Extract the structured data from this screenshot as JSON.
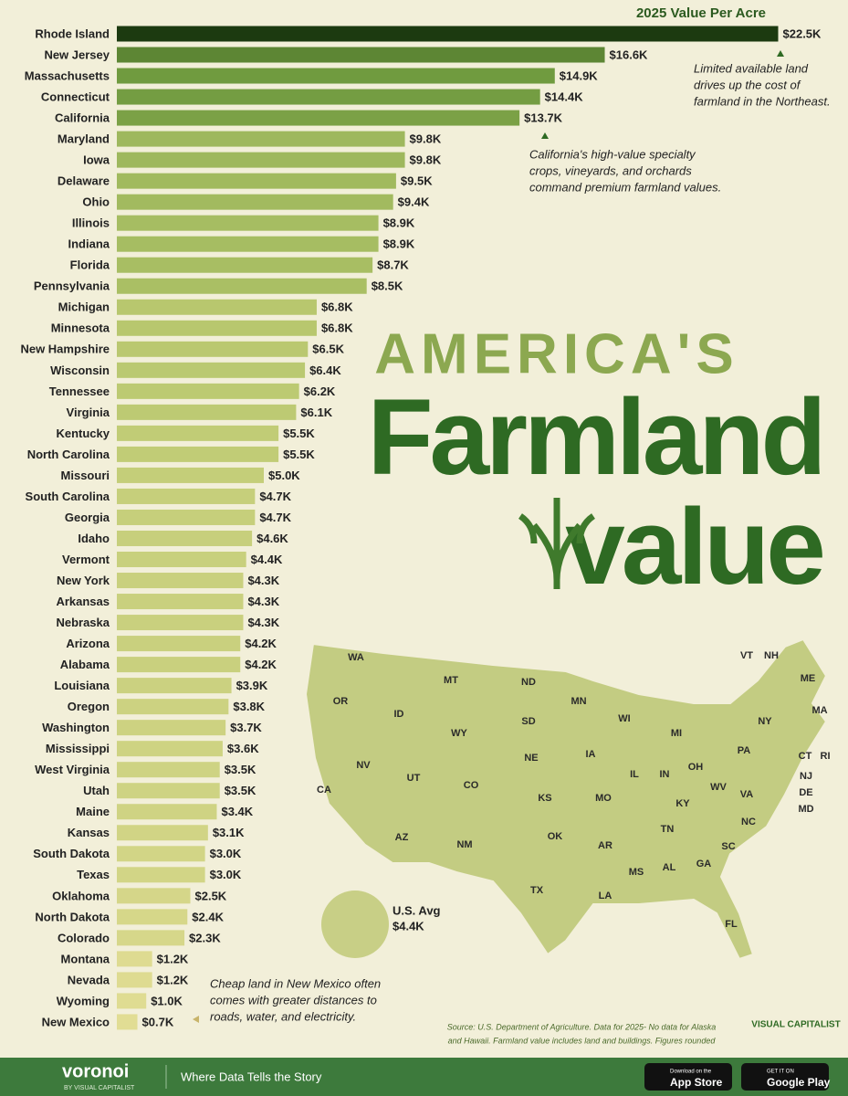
{
  "chart_data": {
    "type": "bar",
    "title": "2025 Value Per Acre",
    "categories": [
      "Rhode Island",
      "New Jersey",
      "Massachusetts",
      "Connecticut",
      "California",
      "Maryland",
      "Iowa",
      "Delaware",
      "Ohio",
      "Illinois",
      "Indiana",
      "Florida",
      "Pennsylvania",
      "Michigan",
      "Minnesota",
      "New Hampshire",
      "Wisconsin",
      "Tennessee",
      "Virginia",
      "Kentucky",
      "North Carolina",
      "Missouri",
      "South Carolina",
      "Georgia",
      "Idaho",
      "Vermont",
      "New York",
      "Arkansas",
      "Nebraska",
      "Arizona",
      "Alabama",
      "Louisiana",
      "Oregon",
      "Washington",
      "Mississippi",
      "West Virginia",
      "Utah",
      "Maine",
      "Kansas",
      "South Dakota",
      "Texas",
      "Oklahoma",
      "North Dakota",
      "Colorado",
      "Montana",
      "Nevada",
      "Wyoming",
      "New Mexico"
    ],
    "values": [
      22.5,
      16.6,
      14.9,
      14.4,
      13.7,
      9.8,
      9.8,
      9.5,
      9.4,
      8.9,
      8.9,
      8.7,
      8.5,
      6.8,
      6.8,
      6.5,
      6.4,
      6.2,
      6.1,
      5.5,
      5.5,
      5.0,
      4.7,
      4.7,
      4.6,
      4.4,
      4.3,
      4.3,
      4.3,
      4.2,
      4.2,
      3.9,
      3.8,
      3.7,
      3.6,
      3.5,
      3.5,
      3.4,
      3.1,
      3.0,
      3.0,
      2.5,
      2.4,
      2.3,
      1.2,
      1.2,
      1.0,
      0.7
    ],
    "value_labels": [
      "$22.5K",
      "$16.6K",
      "$14.9K",
      "$14.4K",
      "$13.7K",
      "$9.8K",
      "$9.8K",
      "$9.5K",
      "$9.4K",
      "$8.9K",
      "$8.9K",
      "$8.7K",
      "$8.5K",
      "$6.8K",
      "$6.8K",
      "$6.5K",
      "$6.4K",
      "$6.2K",
      "$6.1K",
      "$5.5K",
      "$5.5K",
      "$5.0K",
      "$4.7K",
      "$4.7K",
      "$4.6K",
      "$4.4K",
      "$4.3K",
      "$4.3K",
      "$4.3K",
      "$4.2K",
      "$4.2K",
      "$3.9K",
      "$3.8K",
      "$3.7K",
      "$3.6K",
      "$3.5K",
      "$3.5K",
      "$3.4K",
      "$3.1K",
      "$3.0K",
      "$3.0K",
      "$2.5K",
      "$2.4K",
      "$2.3K",
      "$1.2K",
      "$1.2K",
      "$1.0K",
      "$0.7K"
    ],
    "color_stops": [
      "#e6df98",
      "#b3c56a",
      "#6f9a3e",
      "#1c3a10"
    ],
    "annotations": [
      {
        "lines": [
          "Limited available land",
          "drives up the cost of",
          "farmland in the Northeast."
        ]
      },
      {
        "lines": [
          "California's high-value specialty",
          "crops, vineyards, and orchards",
          "command premium farmland values."
        ]
      },
      {
        "lines": [
          "Cheap land in New Mexico often",
          "comes with greater distances to",
          "roads, water, and electricity."
        ]
      }
    ]
  },
  "headline": {
    "line1": "AMERICA'S",
    "line2": "Farmland",
    "line3": "value"
  },
  "map": {
    "labels": [
      "WA",
      "OR",
      "ID",
      "MT",
      "WY",
      "NV",
      "UT",
      "CO",
      "CA",
      "AZ",
      "NM",
      "ND",
      "SD",
      "NE",
      "KS",
      "OK",
      "TX",
      "MN",
      "IA",
      "MO",
      "AR",
      "LA",
      "WI",
      "IL",
      "MS",
      "MI",
      "IN",
      "KY",
      "TN",
      "AL",
      "GA",
      "FL",
      "OH",
      "WV",
      "VA",
      "NC",
      "SC",
      "PA",
      "NY",
      "ME",
      "VT",
      "NH",
      "MA",
      "CT",
      "RI",
      "NJ",
      "DE",
      "MD"
    ],
    "avg_label": "U.S. Avg",
    "avg_value_label": "$4.4K"
  },
  "source": [
    "Source: U.S. Department of Agriculture. Data for 2025- No data for Alaska",
    "and Hawaii. Farmland value includes land and buildings. Figures rounded"
  ],
  "brand": {
    "logo": "VISUAL CAPITALIST"
  },
  "footer": {
    "name": "voronoi",
    "by": "BY VISUAL CAPITALIST",
    "tagline": "Where Data Tells the Story",
    "app_store_small": "Download on the",
    "app_store": "App Store",
    "google_small": "GET IT ON",
    "google": "Google Play"
  }
}
